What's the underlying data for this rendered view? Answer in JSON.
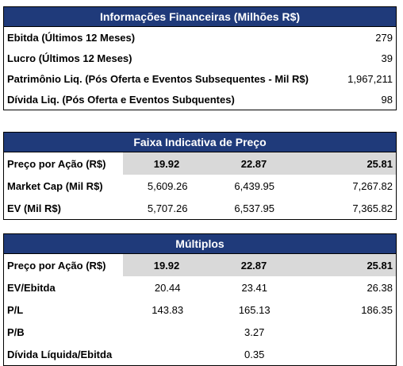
{
  "table1": {
    "title": "Informações Financeiras (Milhões R$)",
    "rows": [
      {
        "label": "Ebitda (Últimos 12 Meses)",
        "value": "279"
      },
      {
        "label": "Lucro (Últimos 12 Meses)",
        "value": "39"
      },
      {
        "label": "Patrimônio Liq. (Pós Oferta e Eventos Subsequentes - Mil R$)",
        "value": "1,967,211"
      },
      {
        "label": "Dívida Liq. (Pós Oferta e Eventos Subquentes)",
        "value": "98"
      }
    ]
  },
  "table2": {
    "title": "Faixa Indicativa de Preço",
    "header": {
      "label": "Preço por Ação (R$)",
      "values": [
        "19.92",
        "22.87",
        "25.81"
      ]
    },
    "rows": [
      {
        "label": "Market Cap (Mil R$)",
        "values": [
          "5,609.26",
          "6,439.95",
          "7,267.82"
        ]
      },
      {
        "label": "EV (Mil R$)",
        "values": [
          "5,707.26",
          "6,537.95",
          "7,365.82"
        ]
      }
    ]
  },
  "table3": {
    "title": "Múltiplos",
    "header": {
      "label": "Preço por Ação (R$)",
      "values": [
        "19.92",
        "22.87",
        "25.81"
      ]
    },
    "rows": [
      {
        "label": "EV/Ebitda",
        "values": [
          "20.44",
          "23.41",
          "26.38"
        ]
      },
      {
        "label": "P/L",
        "values": [
          "143.83",
          "165.13",
          "186.35"
        ]
      },
      {
        "label": "P/B",
        "values": [
          "",
          "3.27",
          ""
        ]
      },
      {
        "label": "Dívida Líquida/Ebitda",
        "values": [
          "",
          "0.35",
          ""
        ]
      }
    ]
  }
}
